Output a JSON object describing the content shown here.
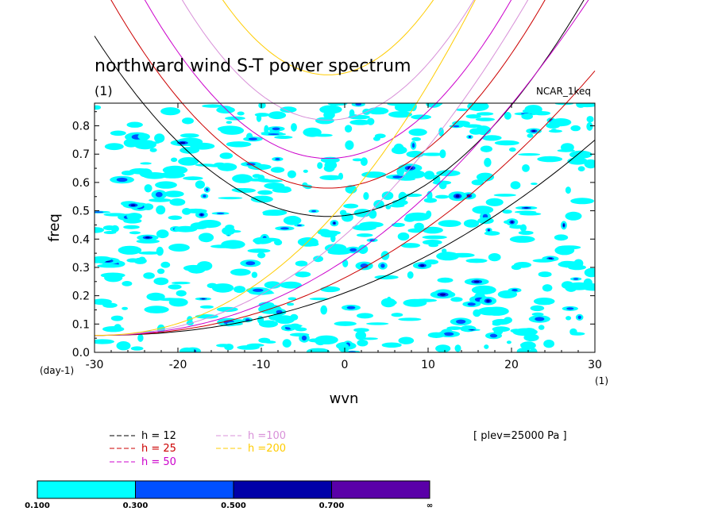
{
  "chart_data": {
    "type": "heatmap",
    "title": "northward wind S-T power spectrum",
    "subtitle_left": "(1)",
    "subtitle_right": "NCAR_1keq",
    "xlabel": "wvn",
    "ylabel": "freq",
    "x_units": "(1)",
    "y_units": "(day-1)",
    "xlim": [
      -30,
      30
    ],
    "ylim": [
      0,
      0.88
    ],
    "x_ticks": [
      "-30",
      "-20",
      "-10",
      "0",
      "10",
      "20",
      "30"
    ],
    "x_tick_values": [
      -30,
      -20,
      -10,
      0,
      10,
      20,
      30
    ],
    "y_ticks": [
      "0.0",
      "0.1",
      "0.2",
      "0.3",
      "0.4",
      "0.5",
      "0.6",
      "0.7",
      "0.8"
    ],
    "y_tick_values": [
      0,
      0.1,
      0.2,
      0.3,
      0.4,
      0.5,
      0.6,
      0.7,
      0.8
    ],
    "annotation": "[ plev=25000 Pa ]",
    "dispersion_curves": [
      {
        "label": "h = 12",
        "h": 12,
        "color": "#000000",
        "min_freq": 0.48
      },
      {
        "label": "h = 25",
        "h": 25,
        "color": "#cc0000",
        "min_freq": 0.58
      },
      {
        "label": "h = 50",
        "h": 50,
        "color": "#cc00cc",
        "min_freq": 0.685
      },
      {
        "label": "h =100",
        "h": 100,
        "color": "#d890d8",
        "min_freq": 0.82
      },
      {
        "label": "h =200",
        "h": 200,
        "color": "#ffcc00",
        "min_freq": 0.98
      }
    ],
    "color_levels": [
      {
        "from": "0.100",
        "to": "0.300",
        "color": "#00ffff"
      },
      {
        "from": "0.300",
        "to": "0.500",
        "color": "#0050ff"
      },
      {
        "from": "0.500",
        "to": "0.700",
        "color": "#0000a8"
      },
      {
        "from": "0.700",
        "to": "∞",
        "color": "#5a00a8"
      }
    ]
  }
}
